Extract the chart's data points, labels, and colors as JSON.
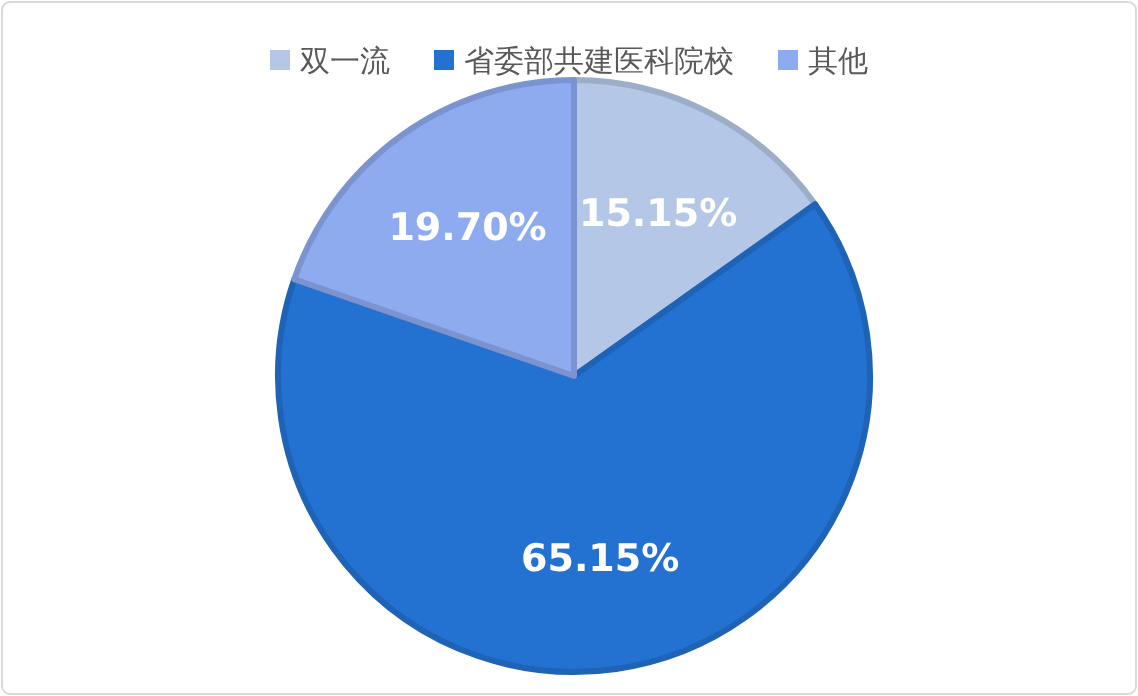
{
  "chart_data": {
    "type": "pie",
    "categories": [
      "双一流",
      "省委部共建医科院校",
      "其他"
    ],
    "values": [
      15.15,
      65.15,
      19.7
    ],
    "colors": [
      "#b4c7e7",
      "#2372d2",
      "#8eabf0"
    ],
    "value_labels": [
      "15.15%",
      "65.15%",
      "19.70%"
    ],
    "legend": "top"
  }
}
